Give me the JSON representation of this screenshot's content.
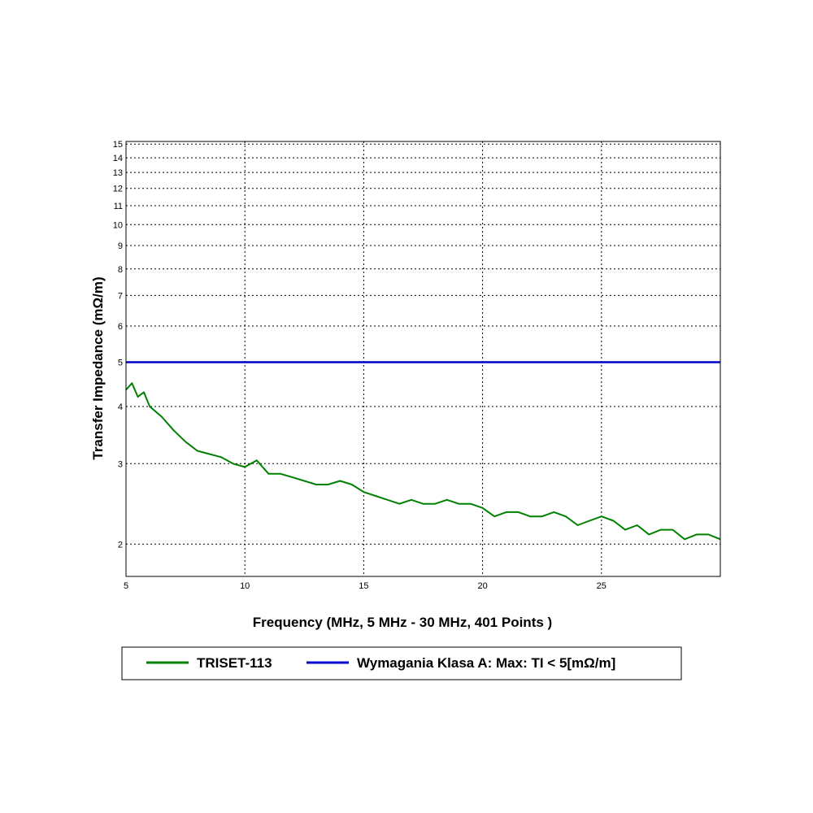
{
  "chart_data": {
    "type": "line",
    "xlabel": "Frequency (MHz, 5 MHz - 30 MHz, 401 Points )",
    "ylabel": "Transfer Impedance (mΩ/m)",
    "xlim": [
      5,
      30
    ],
    "ylim": [
      1.7,
      15.2
    ],
    "y_scale": "log",
    "x_ticks": [
      5,
      10,
      15,
      20,
      25
    ],
    "y_ticks": [
      2,
      3,
      4,
      5,
      6,
      7,
      8,
      9,
      10,
      11,
      12,
      13,
      14,
      15
    ],
    "grid": true,
    "legend_position": "bottom",
    "series": [
      {
        "name": "TRISET-113",
        "color": "#008000",
        "x": [
          5.0,
          5.25,
          5.5,
          5.75,
          6.0,
          6.5,
          7.0,
          7.5,
          8.0,
          8.5,
          9.0,
          9.5,
          10.0,
          10.5,
          11.0,
          11.5,
          12.0,
          12.5,
          13.0,
          13.5,
          14.0,
          14.5,
          15.0,
          15.5,
          16.0,
          16.5,
          17.0,
          17.5,
          18.0,
          18.5,
          19.0,
          19.5,
          20.0,
          20.5,
          21.0,
          21.5,
          22.0,
          22.5,
          23.0,
          23.5,
          24.0,
          24.5,
          25.0,
          25.5,
          26.0,
          26.5,
          27.0,
          27.5,
          28.0,
          28.5,
          29.0,
          29.5,
          30.0
        ],
        "y": [
          4.35,
          4.5,
          4.2,
          4.3,
          4.0,
          3.8,
          3.55,
          3.35,
          3.2,
          3.15,
          3.1,
          3.0,
          2.95,
          3.05,
          2.85,
          2.85,
          2.8,
          2.75,
          2.7,
          2.7,
          2.75,
          2.7,
          2.6,
          2.55,
          2.5,
          2.45,
          2.5,
          2.45,
          2.45,
          2.5,
          2.45,
          2.45,
          2.4,
          2.3,
          2.35,
          2.35,
          2.3,
          2.3,
          2.35,
          2.3,
          2.2,
          2.25,
          2.3,
          2.25,
          2.15,
          2.2,
          2.1,
          2.15,
          2.15,
          2.05,
          2.1,
          2.1,
          2.05
        ]
      },
      {
        "name": "Wymagania Klasa A: Max: TI < 5[mΩ/m]",
        "color": "#0000cc",
        "x": [
          5,
          30
        ],
        "y": [
          5,
          5
        ]
      }
    ]
  }
}
